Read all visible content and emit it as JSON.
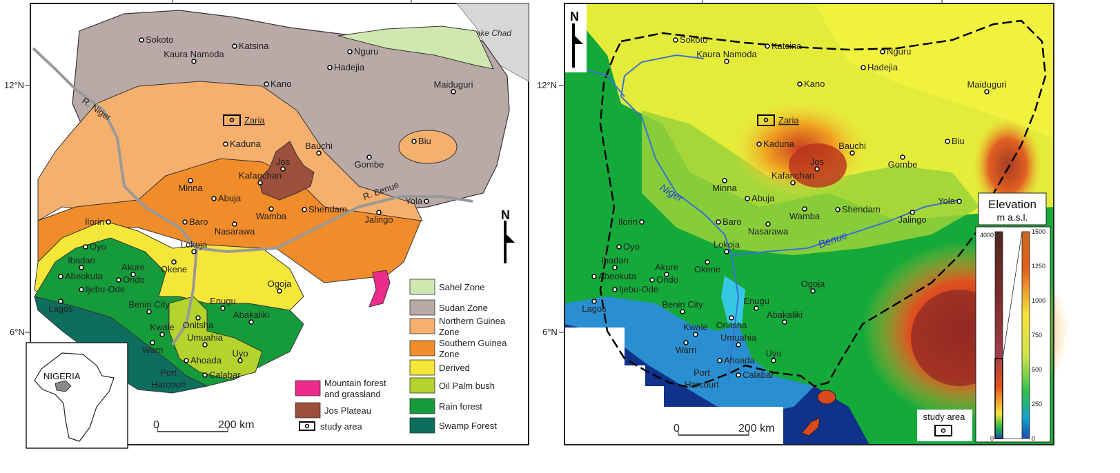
{
  "left_map": {
    "latitude_labels": [
      "12°N",
      "6°N"
    ],
    "lake_label": "Lake Chad",
    "river_labels": [
      "R. Niger",
      "R. Benue"
    ],
    "north_label": "N",
    "scale": {
      "start": "0",
      "end": "200 km"
    },
    "inset_label": "NIGERIA",
    "cities": [
      "Sokoto",
      "Katsina",
      "Kaura Namoda",
      "Nguru",
      "Hadejia",
      "Kano",
      "Maiduguri",
      "Zaria",
      "Kaduna",
      "Bauchi",
      "Jos",
      "Biu",
      "Gombe",
      "Kafanchan",
      "Minna",
      "Abuja",
      "Wamba",
      "Shendam",
      "Yola",
      "Ilorin",
      "Baro",
      "Nasarawa",
      "Jalingo",
      "Lokoja",
      "Oyo",
      "Ibadan",
      "Akure",
      "Okene",
      "Abeokuta",
      "Ondo",
      "Ijebu-Ode",
      "Lagos",
      "Benin City",
      "Enugu",
      "Ogoja",
      "Kwale",
      "Onitsha",
      "Abakaliki",
      "Umuahia",
      "Warri",
      "Ahoada",
      "Uyo",
      "Port",
      "Harcourt",
      "Calabar"
    ],
    "legend": [
      {
        "label": "Sahel Zone",
        "color": "#cfe8b0"
      },
      {
        "label": "Sudan Zone",
        "color": "#b9aaa7"
      },
      {
        "label": "Northern Guinea",
        "label2": "Zone",
        "color": "#f6b06e"
      },
      {
        "label": "Southern Guinea",
        "label2": "Zone",
        "color": "#f18c2a"
      },
      {
        "label": "Derived",
        "color": "#f5e63a"
      },
      {
        "label": "Oil Palm bush",
        "color": "#b4d32c"
      },
      {
        "label": "Rain forest",
        "color": "#169b3b"
      },
      {
        "label": "Swamp Forest",
        "color": "#0d6e5e"
      },
      {
        "label": "Mountain forest",
        "label2": "and grassland",
        "color": "#ec2b8a"
      },
      {
        "label": "Jos Plateau",
        "color": "#9c4f3a"
      },
      {
        "label": "study area",
        "color": "#000000"
      }
    ]
  },
  "right_map": {
    "latitude_labels": [
      "12°N",
      "6°N"
    ],
    "north_label": "N",
    "river_labels": [
      "Niger",
      "Benue"
    ],
    "elevation_title": "Elevation",
    "elevation_unit": "m a.s.l.",
    "elevation_left_ticks": [
      "4000",
      "0"
    ],
    "elevation_right_ticks": [
      "1500",
      "1250",
      "1000",
      "750",
      "500",
      "250",
      "0"
    ],
    "scale": {
      "start": "0",
      "end": "200 km"
    },
    "study_area_label": "study area"
  }
}
